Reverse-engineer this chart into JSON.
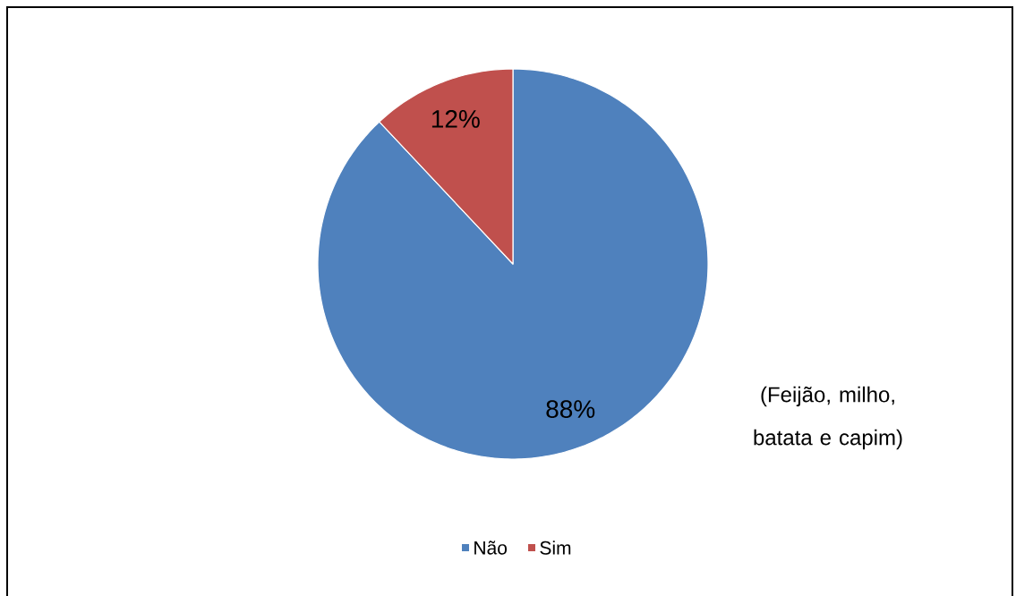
{
  "chart_data": {
    "type": "pie",
    "categories": [
      "Não",
      "Sim"
    ],
    "values": [
      88,
      12
    ],
    "colors": [
      "#4f81bd",
      "#c0504d"
    ],
    "value_labels": [
      "88%",
      "12%"
    ],
    "legend": "bottom",
    "annotations": [
      "(Feijão, milho, batata e capim)"
    ]
  }
}
